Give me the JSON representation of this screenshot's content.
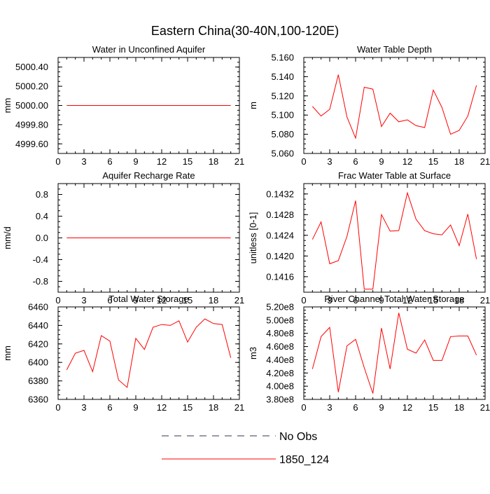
{
  "figure": {
    "title": "Eastern China(30-40N,100-120E)"
  },
  "legend": {
    "items": [
      {
        "label": "No Obs",
        "style": "dashed",
        "color": "#333355"
      },
      {
        "label": "1850_124",
        "style": "solid",
        "color": "#ff0000"
      }
    ]
  },
  "chart_data": [
    {
      "type": "line",
      "title": "Water in Unconfined Aquifer",
      "ylabel": "mm",
      "xlim": [
        0,
        21
      ],
      "ylim": [
        4999.5,
        5000.5
      ],
      "xticks": [
        "0",
        "3",
        "6",
        "9",
        "12",
        "15",
        "18",
        "21"
      ],
      "yticks": [
        "4999.60",
        "4999.80",
        "5000.00",
        "5000.20",
        "5000.40"
      ],
      "x": [
        1,
        2,
        3,
        4,
        5,
        6,
        7,
        8,
        9,
        10,
        11,
        12,
        13,
        14,
        15,
        16,
        17,
        18,
        19,
        20
      ],
      "series": [
        {
          "name": "1850_124",
          "color": "#ff0000",
          "values": [
            5000,
            5000,
            5000,
            5000,
            5000,
            5000,
            5000,
            5000,
            5000,
            5000,
            5000,
            5000,
            5000,
            5000,
            5000,
            5000,
            5000,
            5000,
            5000,
            5000
          ]
        }
      ]
    },
    {
      "type": "line",
      "title": "Water Table Depth",
      "ylabel": "m",
      "xlim": [
        0,
        21
      ],
      "ylim": [
        5.06,
        5.16
      ],
      "xticks": [
        "0",
        "3",
        "6",
        "9",
        "12",
        "15",
        "18",
        "21"
      ],
      "yticks": [
        "5.060",
        "5.080",
        "5.100",
        "5.120",
        "5.140",
        "5.160"
      ],
      "x": [
        1,
        2,
        3,
        4,
        5,
        6,
        7,
        8,
        9,
        10,
        11,
        12,
        13,
        14,
        15,
        16,
        17,
        18,
        19,
        20
      ],
      "series": [
        {
          "name": "1850_124",
          "color": "#ff0000",
          "values": [
            5.109,
            5.099,
            5.106,
            5.142,
            5.098,
            5.076,
            5.129,
            5.127,
            5.088,
            5.102,
            5.093,
            5.095,
            5.089,
            5.087,
            5.126,
            5.108,
            5.08,
            5.084,
            5.099,
            5.131
          ]
        }
      ]
    },
    {
      "type": "line",
      "title": "Aquifer Recharge Rate",
      "ylabel": "mm/d",
      "xlim": [
        0,
        21
      ],
      "ylim": [
        -1.0,
        1.0
      ],
      "xticks": [
        "0",
        "3",
        "6",
        "9",
        "12",
        "15",
        "18",
        "21"
      ],
      "yticks": [
        "-0.8",
        "-0.4",
        "0.0",
        "0.4",
        "0.8"
      ],
      "x": [
        1,
        2,
        3,
        4,
        5,
        6,
        7,
        8,
        9,
        10,
        11,
        12,
        13,
        14,
        15,
        16,
        17,
        18,
        19,
        20
      ],
      "series": [
        {
          "name": "1850_124",
          "color": "#ff0000",
          "values": [
            0,
            0,
            0,
            0,
            0,
            0,
            0,
            0,
            0,
            0,
            0,
            0,
            0,
            0,
            0,
            0,
            0,
            0,
            0,
            0
          ]
        }
      ]
    },
    {
      "type": "line",
      "title": "Frac Water Table at Surface",
      "ylabel": "unitless [0-1]",
      "xlim": [
        0,
        21
      ],
      "ylim": [
        0.1413,
        0.1434
      ],
      "xticks": [
        "0",
        "3",
        "6",
        "9",
        "12",
        "15",
        "18",
        "21"
      ],
      "yticks": [
        "0.1416",
        "0.1420",
        "0.1424",
        "0.1428",
        "0.1432"
      ],
      "x": [
        1,
        2,
        3,
        4,
        5,
        6,
        7,
        8,
        9,
        10,
        11,
        12,
        13,
        14,
        15,
        16,
        17,
        18,
        19,
        20
      ],
      "series": [
        {
          "name": "1850_124",
          "color": "#ff0000",
          "values": [
            0.14232,
            0.14266,
            0.14185,
            0.14191,
            0.14238,
            0.14307,
            0.14136,
            0.14136,
            0.1428,
            0.14248,
            0.14249,
            0.14322,
            0.14271,
            0.14249,
            0.14243,
            0.14241,
            0.1426,
            0.1422,
            0.14281,
            0.14194
          ]
        }
      ]
    },
    {
      "type": "line",
      "title": "Total Water Storage",
      "ylabel": "mm",
      "xlim": [
        0,
        21
      ],
      "ylim": [
        6360,
        6460
      ],
      "xticks": [
        "0",
        "3",
        "6",
        "9",
        "12",
        "15",
        "18",
        "21"
      ],
      "yticks": [
        "6360",
        "6380",
        "6400",
        "6420",
        "6440",
        "6460"
      ],
      "x": [
        1,
        2,
        3,
        4,
        5,
        6,
        7,
        8,
        9,
        10,
        11,
        12,
        13,
        14,
        15,
        16,
        17,
        18,
        19,
        20
      ],
      "series": [
        {
          "name": "1850_124",
          "color": "#ff0000",
          "values": [
            6392,
            6410,
            6413,
            6390,
            6429,
            6423,
            6381,
            6373,
            6426,
            6414,
            6438,
            6441,
            6440,
            6445,
            6422,
            6438,
            6447,
            6442,
            6441,
            6405
          ]
        }
      ]
    },
    {
      "type": "line",
      "title": "River Channel Total Water Storage",
      "ylabel": "m3",
      "xlim": [
        0,
        21
      ],
      "ylim": [
        380000000,
        520000000
      ],
      "xticks": [
        "0",
        "3",
        "6",
        "9",
        "12",
        "15",
        "18",
        "21"
      ],
      "yticks": [
        "3.80e8",
        "4.00e8",
        "4.20e8",
        "4.40e8",
        "4.60e8",
        "4.80e8",
        "5.00e8",
        "5.20e8"
      ],
      "x": [
        1,
        2,
        3,
        4,
        5,
        6,
        7,
        8,
        9,
        10,
        11,
        12,
        13,
        14,
        15,
        16,
        17,
        18,
        19,
        20
      ],
      "series": [
        {
          "name": "1850_124",
          "color": "#ff0000",
          "values": [
            426000000,
            475000000,
            489000000,
            391000000,
            461000000,
            471000000,
            428000000,
            389000000,
            488000000,
            426000000,
            511000000,
            456000000,
            450000000,
            470000000,
            439000000,
            439000000,
            475000000,
            476000000,
            476000000,
            447000000
          ]
        }
      ]
    }
  ]
}
